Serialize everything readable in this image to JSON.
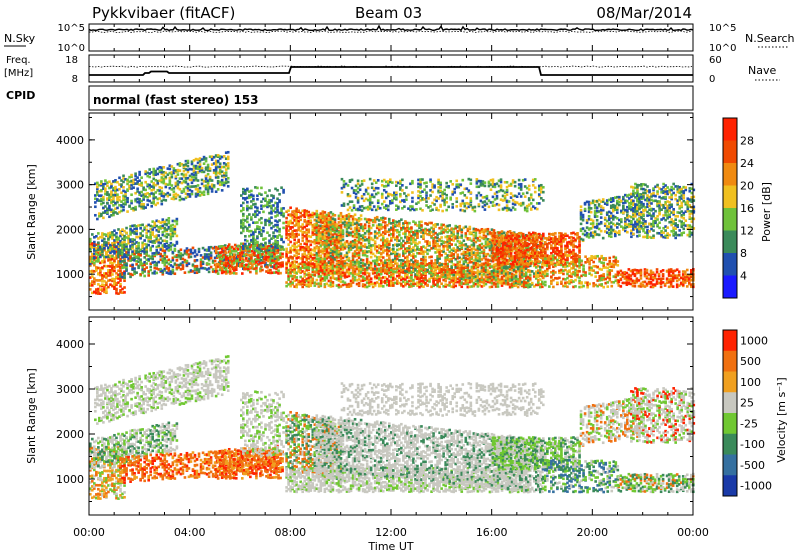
{
  "header": {
    "station": "Pykkvibaer (fitACF)",
    "beam": "Beam 03",
    "date": "08/Mar/2014"
  },
  "nsky_panel": {
    "left_label": "N.Sky",
    "right_label": "N.Search",
    "left_ticks": [
      "10^5",
      "10^0"
    ],
    "right_ticks": [
      "10^5",
      "10^0"
    ]
  },
  "freq_panel": {
    "left_label_1": "Freq.",
    "left_label_2": "[MHz]",
    "right_label": "Nave",
    "left_ticks": [
      "18",
      "8"
    ],
    "right_ticks": [
      "60",
      "0"
    ],
    "cpid_label": "CPID"
  },
  "cpid_text": "normal (fast stereo) 153",
  "chart_data": [
    {
      "type": "heatmap",
      "ylabel": "Slant Range [km]",
      "ylim": [
        200,
        4600
      ],
      "yticks": [
        "1000",
        "2000",
        "3000",
        "4000"
      ],
      "colorbar_label": "Power [dB]",
      "colorbar_ticks": [
        "4",
        "8",
        "12",
        "16",
        "20",
        "24",
        "28"
      ],
      "colors": [
        "#1a1aff",
        "#2050b0",
        "#3a8a5a",
        "#6fc23a",
        "#f0c020",
        "#f08a10",
        "#f04a00",
        "#ff2200"
      ]
    },
    {
      "type": "heatmap",
      "ylabel": "Slant Range [km]",
      "ylim": [
        200,
        4600
      ],
      "yticks": [
        "1000",
        "2000",
        "3000",
        "4000"
      ],
      "colorbar_label": "Velocity [m s⁻¹]",
      "colorbar_ticks": [
        "1000",
        "500",
        "100",
        "25",
        "-25",
        "-100",
        "-500",
        "-1000"
      ],
      "colors": [
        "#1a3aa8",
        "#3570a0",
        "#3a8a5a",
        "#70c832",
        "#c8c8c0",
        "#f0a020",
        "#f07010",
        "#ff2200"
      ]
    }
  ],
  "xaxis": {
    "label": "Time UT",
    "ticks": [
      "00:00",
      "04:00",
      "08:00",
      "12:00",
      "16:00",
      "20:00",
      "00:00"
    ]
  }
}
